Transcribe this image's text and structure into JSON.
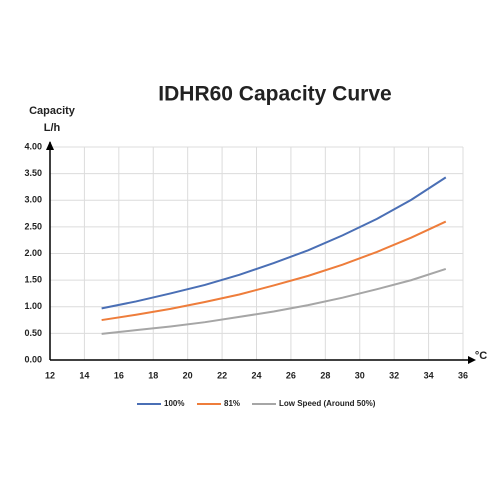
{
  "chart_data": {
    "type": "line",
    "title": "IDHR60  Capacity Curve",
    "ylabel": "Capacity",
    "yunit": "L/h",
    "xlabel": "°C",
    "x": [
      15,
      17,
      19,
      21,
      23,
      25,
      27,
      29,
      31,
      33,
      35
    ],
    "series": [
      {
        "name": "100%",
        "color": "#4a6fb5",
        "values": [
          0.97,
          1.1,
          1.25,
          1.41,
          1.6,
          1.82,
          2.06,
          2.34,
          2.65,
          3.01,
          3.43
        ]
      },
      {
        "name": "81%",
        "color": "#ee7d3b",
        "values": [
          0.75,
          0.85,
          0.96,
          1.09,
          1.23,
          1.4,
          1.58,
          1.79,
          2.03,
          2.3,
          2.6
        ]
      },
      {
        "name": "Low Speed (Around 50%)",
        "color": "#a6a6a6",
        "values": [
          0.49,
          0.56,
          0.63,
          0.71,
          0.81,
          0.91,
          1.03,
          1.17,
          1.33,
          1.5,
          1.71
        ]
      }
    ],
    "xlim": [
      12,
      36
    ],
    "xticks": [
      12,
      14,
      16,
      18,
      20,
      22,
      24,
      26,
      28,
      30,
      32,
      34,
      36
    ],
    "ylim": [
      0,
      4
    ],
    "yticks": [
      {
        "value": 0,
        "label": "0.00"
      },
      {
        "value": 0.5,
        "label": "0.50"
      },
      {
        "value": 1,
        "label": "1.00"
      },
      {
        "value": 1.5,
        "label": "1.50"
      },
      {
        "value": 2,
        "label": "2.00"
      },
      {
        "value": 2.5,
        "label": "2.50"
      },
      {
        "value": 3,
        "label": "3.00"
      },
      {
        "value": 3.5,
        "label": "3.50"
      },
      {
        "value": 4,
        "label": "4.00"
      }
    ],
    "grid": true
  }
}
